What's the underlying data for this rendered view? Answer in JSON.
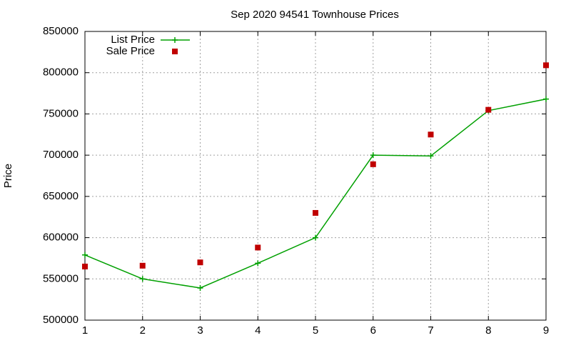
{
  "chart_data": {
    "type": "line",
    "title": "Sep 2020 94541 Townhouse Prices",
    "y_label": "Price",
    "x": [
      1,
      2,
      3,
      4,
      5,
      6,
      7,
      8,
      9
    ],
    "series": [
      {
        "name": "List Price",
        "color": "#00a000",
        "line": true,
        "marker": "plus",
        "values": [
          579000,
          550000,
          539000,
          569000,
          600000,
          700000,
          699000,
          754000,
          768000
        ]
      },
      {
        "name": "Sale Price",
        "color": "#c00000",
        "line": false,
        "marker": "square",
        "values": [
          565000,
          566000,
          570000,
          588000,
          630000,
          689000,
          725000,
          755000,
          809000
        ]
      }
    ],
    "xlim": [
      1,
      9
    ],
    "xticks": [
      1,
      2,
      3,
      4,
      5,
      6,
      7,
      8,
      9
    ],
    "ylim": [
      500000,
      850000
    ],
    "yticks": [
      500000,
      550000,
      600000,
      650000,
      700000,
      750000,
      800000,
      850000
    ],
    "grid": true,
    "legend": "top-left"
  }
}
